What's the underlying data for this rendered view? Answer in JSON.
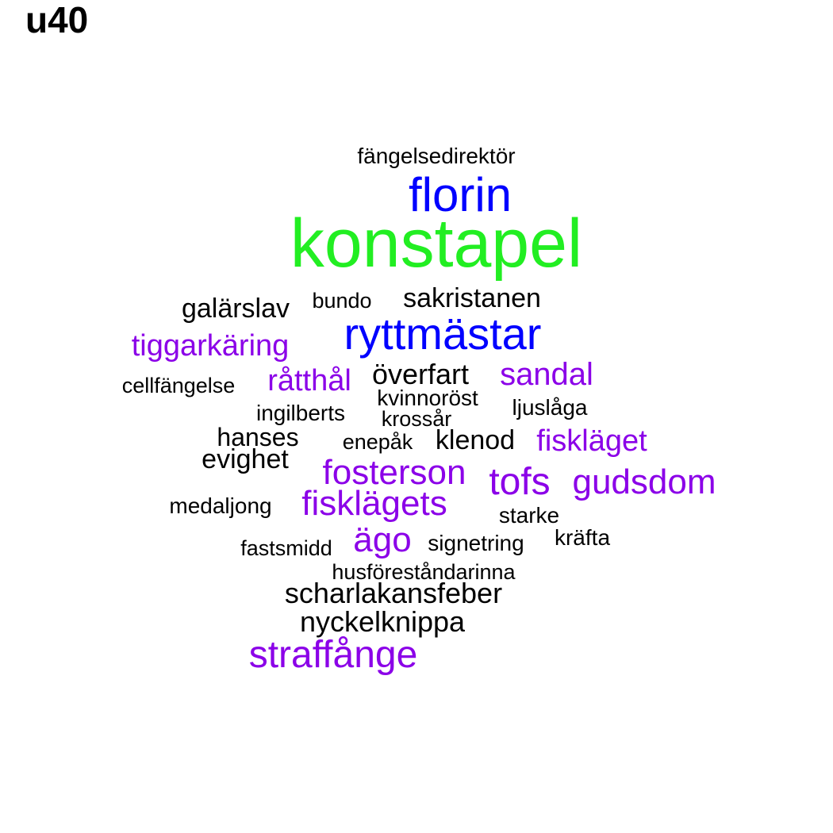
{
  "title": "u40",
  "palette": {
    "black": "#000000",
    "purple": "#8b00e8",
    "blue": "#0000ff",
    "green": "#22ee22"
  },
  "chart_data": {
    "type": "wordcloud",
    "title": "u40",
    "words": [
      {
        "text": "konstapel",
        "weight": 5,
        "color": "#22ee22"
      },
      {
        "text": "florin",
        "weight": 4,
        "color": "#0000ff"
      },
      {
        "text": "ryttmästar",
        "weight": 4,
        "color": "#0000ff"
      },
      {
        "text": "fängelsedirektör",
        "weight": 1,
        "color": "#000000"
      },
      {
        "text": "galärslav",
        "weight": 2,
        "color": "#000000"
      },
      {
        "text": "bundo",
        "weight": 1,
        "color": "#000000"
      },
      {
        "text": "sakristanen",
        "weight": 2,
        "color": "#000000"
      },
      {
        "text": "tiggarkäring",
        "weight": 3,
        "color": "#8b00e8"
      },
      {
        "text": "cellfängelse",
        "weight": 1,
        "color": "#000000"
      },
      {
        "text": "råtthål",
        "weight": 3,
        "color": "#8b00e8"
      },
      {
        "text": "överfart",
        "weight": 2,
        "color": "#000000"
      },
      {
        "text": "sandal",
        "weight": 3,
        "color": "#8b00e8"
      },
      {
        "text": "kvinnoröst",
        "weight": 1,
        "color": "#000000"
      },
      {
        "text": "ljuslåga",
        "weight": 1,
        "color": "#000000"
      },
      {
        "text": "ingilberts",
        "weight": 1,
        "color": "#000000"
      },
      {
        "text": "krossår",
        "weight": 1,
        "color": "#000000"
      },
      {
        "text": "hanses",
        "weight": 2,
        "color": "#000000"
      },
      {
        "text": "enepåk",
        "weight": 1,
        "color": "#000000"
      },
      {
        "text": "klenod",
        "weight": 2,
        "color": "#000000"
      },
      {
        "text": "fiskläget",
        "weight": 3,
        "color": "#8b00e8"
      },
      {
        "text": "evighet",
        "weight": 2,
        "color": "#000000"
      },
      {
        "text": "fosterson",
        "weight": 3,
        "color": "#8b00e8"
      },
      {
        "text": "tofs",
        "weight": 3,
        "color": "#8b00e8"
      },
      {
        "text": "gudsdom",
        "weight": 3,
        "color": "#8b00e8"
      },
      {
        "text": "medaljong",
        "weight": 1,
        "color": "#000000"
      },
      {
        "text": "fisklägets",
        "weight": 3,
        "color": "#8b00e8"
      },
      {
        "text": "starke",
        "weight": 1,
        "color": "#000000"
      },
      {
        "text": "ägo",
        "weight": 3,
        "color": "#8b00e8"
      },
      {
        "text": "kräfta",
        "weight": 1,
        "color": "#000000"
      },
      {
        "text": "fastsmidd",
        "weight": 1,
        "color": "#000000"
      },
      {
        "text": "signetring",
        "weight": 1,
        "color": "#000000"
      },
      {
        "text": "husföreståndarinna",
        "weight": 1,
        "color": "#000000"
      },
      {
        "text": "scharlakansfeber",
        "weight": 2,
        "color": "#000000"
      },
      {
        "text": "nyckelknippa",
        "weight": 2,
        "color": "#000000"
      },
      {
        "text": "straffånge",
        "weight": 3,
        "color": "#8b00e8"
      }
    ]
  }
}
